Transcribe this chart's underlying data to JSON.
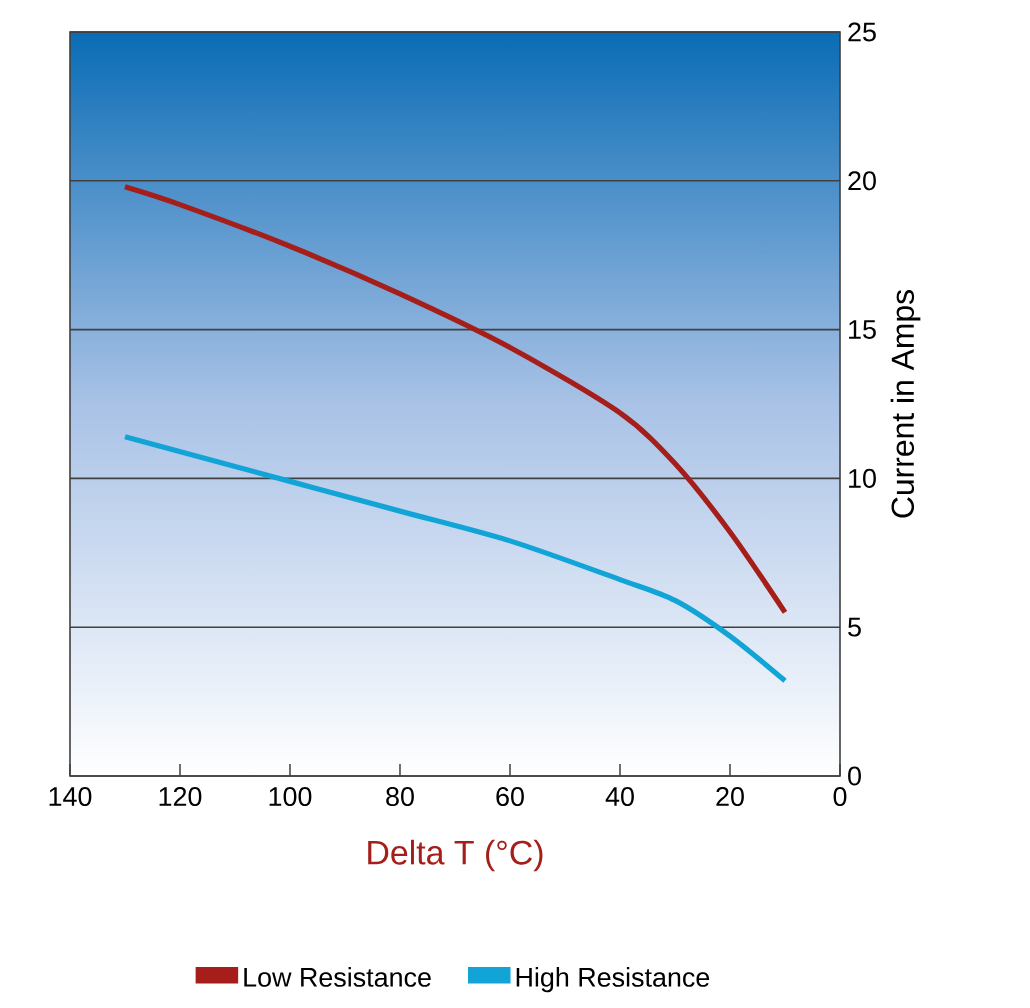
{
  "chart_data": {
    "type": "line",
    "xlabel": "Delta T (°C)",
    "ylabel": "Current in Amps",
    "xlim": [
      140,
      0
    ],
    "ylim": [
      0,
      25
    ],
    "xticks": [
      140,
      120,
      100,
      80,
      60,
      40,
      20,
      0
    ],
    "yticks": [
      0,
      5,
      10,
      15,
      20,
      25
    ],
    "grid": "y",
    "legend": "bottom",
    "series": [
      {
        "name": "Low Resistance",
        "color": "#a51e1a",
        "x": [
          130,
          120,
          100,
          80,
          60,
          40,
          30,
          20,
          10
        ],
        "values": [
          19.8,
          19.2,
          17.8,
          16.2,
          14.4,
          12.2,
          10.5,
          8.2,
          5.5
        ]
      },
      {
        "name": "High Resistance",
        "color": "#12a4d6",
        "x": [
          130,
          100,
          80,
          60,
          40,
          30,
          20,
          10
        ],
        "values": [
          11.4,
          9.9,
          8.9,
          7.9,
          6.6,
          5.9,
          4.7,
          3.2
        ]
      }
    ]
  }
}
